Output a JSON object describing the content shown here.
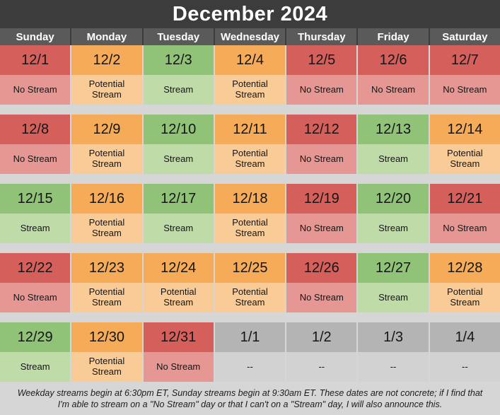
{
  "title": "December 2024",
  "weekday_headers": [
    "Sunday",
    "Monday",
    "Tuesday",
    "Wednesday",
    "Thursday",
    "Friday",
    "Saturday"
  ],
  "weeks": [
    [
      {
        "date": "12/1",
        "status": "No Stream",
        "kind": "no-stream"
      },
      {
        "date": "12/2",
        "status": "Potential Stream",
        "kind": "potential"
      },
      {
        "date": "12/3",
        "status": "Stream",
        "kind": "stream"
      },
      {
        "date": "12/4",
        "status": "Potential Stream",
        "kind": "potential"
      },
      {
        "date": "12/5",
        "status": "No Stream",
        "kind": "no-stream"
      },
      {
        "date": "12/6",
        "status": "No Stream",
        "kind": "no-stream"
      },
      {
        "date": "12/7",
        "status": "No Stream",
        "kind": "no-stream"
      }
    ],
    [
      {
        "date": "12/8",
        "status": "No Stream",
        "kind": "no-stream"
      },
      {
        "date": "12/9",
        "status": "Potential Stream",
        "kind": "potential"
      },
      {
        "date": "12/10",
        "status": "Stream",
        "kind": "stream"
      },
      {
        "date": "12/11",
        "status": "Potential Stream",
        "kind": "potential"
      },
      {
        "date": "12/12",
        "status": "No Stream",
        "kind": "no-stream"
      },
      {
        "date": "12/13",
        "status": "Stream",
        "kind": "stream"
      },
      {
        "date": "12/14",
        "status": "Potential Stream",
        "kind": "potential"
      }
    ],
    [
      {
        "date": "12/15",
        "status": "Stream",
        "kind": "stream"
      },
      {
        "date": "12/16",
        "status": "Potential Stream",
        "kind": "potential"
      },
      {
        "date": "12/17",
        "status": "Stream",
        "kind": "stream"
      },
      {
        "date": "12/18",
        "status": "Potential Stream",
        "kind": "potential"
      },
      {
        "date": "12/19",
        "status": "No Stream",
        "kind": "no-stream"
      },
      {
        "date": "12/20",
        "status": "Stream",
        "kind": "stream"
      },
      {
        "date": "12/21",
        "status": "No Stream",
        "kind": "no-stream"
      }
    ],
    [
      {
        "date": "12/22",
        "status": "No Stream",
        "kind": "no-stream"
      },
      {
        "date": "12/23",
        "status": "Potential Stream",
        "kind": "potential"
      },
      {
        "date": "12/24",
        "status": "Potential Stream",
        "kind": "potential"
      },
      {
        "date": "12/25",
        "status": "Potential Stream",
        "kind": "potential"
      },
      {
        "date": "12/26",
        "status": "No Stream",
        "kind": "no-stream"
      },
      {
        "date": "12/27",
        "status": "Stream",
        "kind": "stream"
      },
      {
        "date": "12/28",
        "status": "Potential Stream",
        "kind": "potential"
      }
    ],
    [
      {
        "date": "12/29",
        "status": "Stream",
        "kind": "stream"
      },
      {
        "date": "12/30",
        "status": "Potential Stream",
        "kind": "potential"
      },
      {
        "date": "12/31",
        "status": "No Stream",
        "kind": "no-stream"
      },
      {
        "date": "1/1",
        "status": "--",
        "kind": "off"
      },
      {
        "date": "1/2",
        "status": "--",
        "kind": "off"
      },
      {
        "date": "1/3",
        "status": "--",
        "kind": "off"
      },
      {
        "date": "1/4",
        "status": "--",
        "kind": "off"
      }
    ]
  ],
  "footer": {
    "line1": "Weekday streams begin at 6:30pm ET, Sunday streams begin at 9:30am ET. These dates are not concrete; if I find that",
    "line2": "I'm able to stream on a \"No Stream\" day or that I can't on a \"Stream\" day, I will also announce this."
  },
  "colors": {
    "title-bg": "#3c3c3c",
    "header-cell-bg": "#5a5a5a",
    "page-bg": "#d6d6d6",
    "text-dark": "#151515",
    "no-stream-date": "#d55f5b",
    "no-stream-status": "#e69793",
    "potential-date": "#f5ab58",
    "potential-status": "#f9cb97",
    "stream-date": "#90c377",
    "stream-status": "#bedba8",
    "off-date": "#b4b4b4",
    "off-status": "#d2d2d2"
  }
}
